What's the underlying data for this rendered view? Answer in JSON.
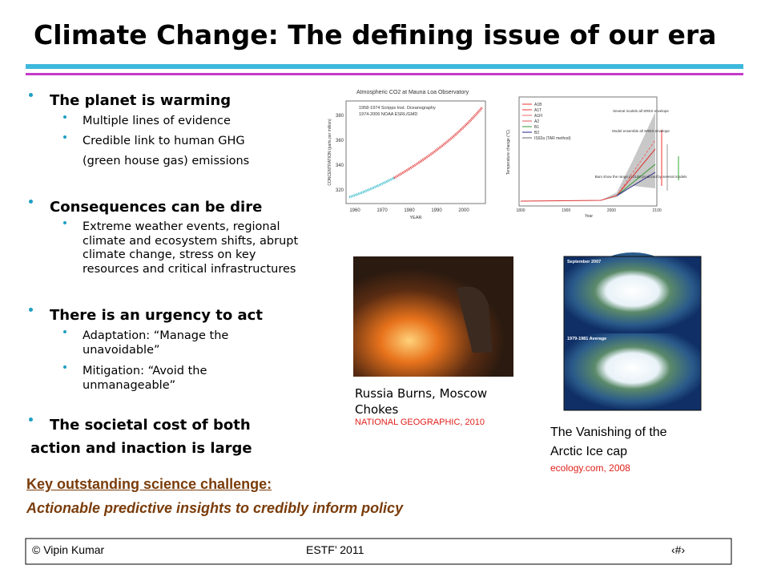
{
  "title": "Climate Change: The defining issue of our era",
  "bullets": [
    {
      "lines": [
        "The planet is warming"
      ],
      "sub": [
        {
          "lines": [
            "Multiple lines of evidence"
          ]
        },
        {
          "lines": [
            "Credible link to human GHG",
            "(green house gas) emissions"
          ]
        }
      ]
    },
    {
      "lines": [
        "Consequences can be dire"
      ],
      "sub": [
        {
          "lines": [
            "Extreme weather events, regional",
            "climate and ecosystem shifts, abrupt",
            "climate change, stress on key",
            "resources and critical infrastructures"
          ]
        }
      ]
    },
    {
      "lines": [
        "There is an urgency to act"
      ],
      "sub": [
        {
          "lines": [
            "Adaptation: “Manage the",
            "unavoidable”"
          ]
        },
        {
          "lines": [
            "Mitigation: “Avoid the",
            "unmanageable”"
          ]
        }
      ]
    },
    {
      "lines": [
        "The societal cost of both",
        "action and inaction is large"
      ],
      "sub": []
    }
  ],
  "co2_figure": {
    "title": "Atmospheric CO2 at Mauna Loa Observatory",
    "legend": [
      "1958-1974 Scripps Inst. Oceanography",
      "1974-2006 NOAA ESRL/GMD"
    ],
    "ylabel": "CONCENTRATION (parts per million)",
    "xlabel": "YEAR",
    "yticks": [
      "380",
      "360",
      "340",
      "320"
    ],
    "xticks": [
      "1960",
      "1970",
      "1980",
      "1990",
      "2000"
    ]
  },
  "temp_figure": {
    "ylabel": "Temperature change (°C)",
    "legend": [
      "A1B",
      "A1T",
      "A1FI",
      "A2",
      "B1",
      "B2",
      "IS92a (TAR method)"
    ],
    "notes": [
      "Several models all SRES envelope",
      "Model ensemble all SRES envelope",
      "Bars show the range in 2100 produced by several models"
    ],
    "xticks": [
      "1800",
      "1900",
      "2000",
      "2100"
    ],
    "xlabel": "Year"
  },
  "fire_caption": {
    "lines": [
      "Russia Burns, Moscow",
      "Chokes"
    ],
    "source": "NATIONAL GEOGRAPHIC, 2010"
  },
  "arctic_figure": {
    "labels": [
      "September 2007",
      "1979-1981 Average"
    ]
  },
  "arctic_caption": {
    "lines": [
      "The Vanishing of the",
      "Arctic Ice cap"
    ],
    "source": "ecology.com, 2008"
  },
  "challenge": {
    "heading": "Key outstanding science challenge:",
    "text": "Actionable predictive insights to credibly inform policy"
  },
  "footer": {
    "left": "© Vipin Kumar",
    "center": "ESTF’ 2011",
    "right": "‹#›"
  }
}
